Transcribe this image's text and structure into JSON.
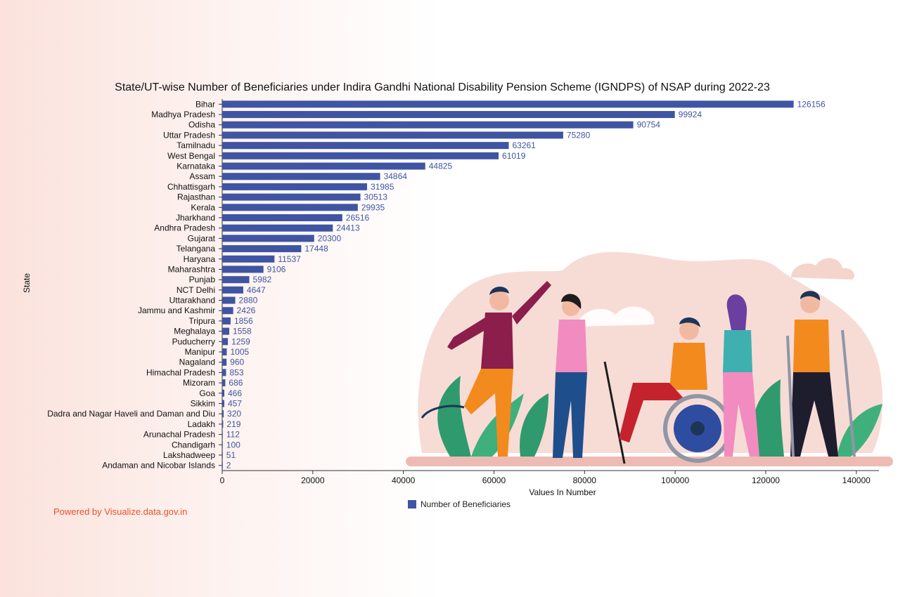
{
  "powered_by": "Powered by Visualize.data.gov.in",
  "colors": {
    "bar": "#3f55a3",
    "label": "#3f55a3",
    "illustration_bg": "#f6d6cf",
    "plant": "#2f9a6e"
  },
  "chart_data": {
    "type": "bar",
    "orientation": "horizontal",
    "title": "State/UT-wise Number of Beneficiaries under Indira Gandhi National Disability Pension Scheme (IGNDPS) of NSAP during 2022-23",
    "xlabel": "Values In Number",
    "ylabel": "State",
    "xlim": [
      0,
      145000
    ],
    "xticks": [
      0,
      20000,
      40000,
      60000,
      80000,
      100000,
      120000,
      140000
    ],
    "legend": {
      "position": "bottom-center",
      "entries": [
        "Number of Beneficiaries"
      ]
    },
    "series": [
      {
        "name": "Number of Beneficiaries"
      }
    ],
    "categories": [
      "Bihar",
      "Madhya Pradesh",
      "Odisha",
      "Uttar Pradesh",
      "Tamilnadu",
      "West Bengal",
      "Karnataka",
      "Assam",
      "Chhattisgarh",
      "Rajasthan",
      "Kerala",
      "Jharkhand",
      "Andhra Pradesh",
      "Gujarat",
      "Telangana",
      "Haryana",
      "Maharashtra",
      "Punjab",
      "NCT Delhi",
      "Uttarakhand",
      "Jammu and Kashmir",
      "Tripura",
      "Meghalaya",
      "Puducherry",
      "Manipur",
      "Nagaland",
      "Himachal Pradesh",
      "Mizoram",
      "Goa",
      "Sikkim",
      "Dadra and Nagar Haveli and Daman and Diu",
      "Ladakh",
      "Arunachal Pradesh",
      "Chandigarh",
      "Lakshadweep",
      "Andaman and Nicobar Islands"
    ],
    "values": [
      126156,
      99924,
      90754,
      75280,
      63261,
      61019,
      44825,
      34864,
      31985,
      30513,
      29935,
      26516,
      24413,
      20300,
      17448,
      11537,
      9106,
      5982,
      4647,
      2880,
      2426,
      1856,
      1558,
      1259,
      1005,
      960,
      853,
      686,
      466,
      457,
      320,
      219,
      112,
      100,
      51,
      2
    ]
  }
}
